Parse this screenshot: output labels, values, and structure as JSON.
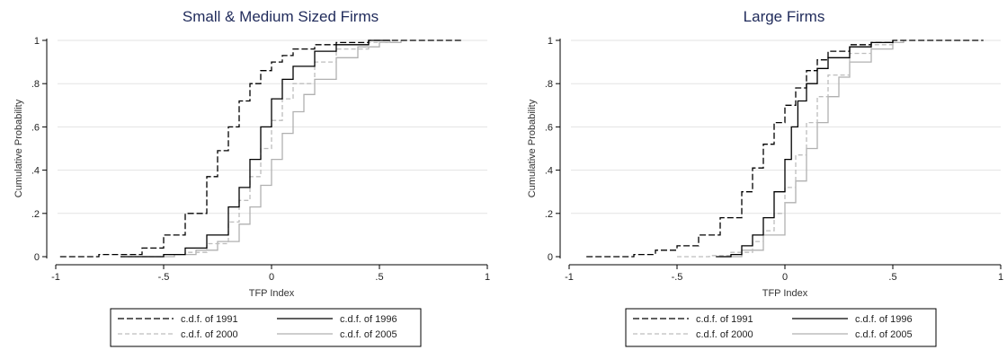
{
  "chart_data": [
    {
      "type": "line",
      "title": "Small & Medium Sized Firms",
      "xlabel": "TFP Index",
      "ylabel": "Cumulative Probability",
      "xlim": [
        -1,
        1
      ],
      "ylim": [
        0,
        1
      ],
      "xticks": [
        -1,
        -0.5,
        0,
        0.5,
        1
      ],
      "xtick_labels": [
        "-1",
        "-.5",
        "0",
        ".5",
        "1"
      ],
      "yticks": [
        0,
        0.2,
        0.4,
        0.6,
        0.8,
        1
      ],
      "ytick_labels": [
        "0",
        ".2",
        ".4",
        ".6",
        ".8",
        "1"
      ],
      "grid": true,
      "legend_position": "bottom",
      "series": [
        {
          "name": "c.d.f. of 1991",
          "color": "#000000",
          "dash": "long-dash",
          "x": [
            -0.98,
            -0.8,
            -0.6,
            -0.5,
            -0.4,
            -0.3,
            -0.25,
            -0.2,
            -0.15,
            -0.1,
            -0.05,
            0.0,
            0.05,
            0.1,
            0.2,
            0.3,
            0.45,
            0.6,
            0.7,
            0.88
          ],
          "y": [
            0,
            0.01,
            0.04,
            0.1,
            0.2,
            0.37,
            0.49,
            0.6,
            0.72,
            0.8,
            0.86,
            0.9,
            0.93,
            0.96,
            0.98,
            0.99,
            1,
            1,
            1,
            1
          ]
        },
        {
          "name": "c.d.f. of 1996",
          "color": "#000000",
          "dash": "solid",
          "x": [
            -0.7,
            -0.5,
            -0.4,
            -0.3,
            -0.2,
            -0.15,
            -0.1,
            -0.05,
            0.0,
            0.05,
            0.1,
            0.2,
            0.3,
            0.45,
            0.55
          ],
          "y": [
            0,
            0.01,
            0.04,
            0.1,
            0.23,
            0.32,
            0.45,
            0.6,
            0.73,
            0.82,
            0.88,
            0.95,
            0.98,
            1,
            1
          ]
        },
        {
          "name": "c.d.f. of 2000",
          "color": "#bdbdbd",
          "dash": "dash",
          "x": [
            -0.7,
            -0.5,
            -0.4,
            -0.3,
            -0.2,
            -0.15,
            -0.1,
            -0.05,
            0.0,
            0.05,
            0.1,
            0.2,
            0.3,
            0.45,
            0.55
          ],
          "y": [
            0,
            0.01,
            0.02,
            0.06,
            0.16,
            0.26,
            0.37,
            0.5,
            0.63,
            0.73,
            0.8,
            0.9,
            0.96,
            0.99,
            1
          ]
        },
        {
          "name": "c.d.f. of 2005",
          "color": "#b0b0b0",
          "dash": "solid",
          "x": [
            -0.6,
            -0.45,
            -0.35,
            -0.25,
            -0.15,
            -0.1,
            -0.05,
            0.0,
            0.05,
            0.1,
            0.15,
            0.2,
            0.3,
            0.4,
            0.5,
            0.6
          ],
          "y": [
            0,
            0.01,
            0.03,
            0.07,
            0.15,
            0.23,
            0.33,
            0.45,
            0.57,
            0.67,
            0.75,
            0.82,
            0.92,
            0.97,
            0.99,
            1
          ]
        }
      ]
    },
    {
      "type": "line",
      "title": "Large Firms",
      "xlabel": "TFP Index",
      "ylabel": "Cumulative Probability",
      "xlim": [
        -1,
        1
      ],
      "ylim": [
        0,
        1
      ],
      "xticks": [
        -1,
        -0.5,
        0,
        0.5,
        1
      ],
      "xtick_labels": [
        "-1",
        "-.5",
        "0",
        ".5",
        "1"
      ],
      "yticks": [
        0,
        0.2,
        0.4,
        0.6,
        0.8,
        1
      ],
      "ytick_labels": [
        "0",
        ".2",
        ".4",
        ".6",
        ".8",
        "1"
      ],
      "grid": true,
      "legend_position": "bottom",
      "series": [
        {
          "name": "c.d.f. of 1991",
          "color": "#000000",
          "dash": "long-dash",
          "x": [
            -0.92,
            -0.7,
            -0.6,
            -0.5,
            -0.4,
            -0.3,
            -0.2,
            -0.15,
            -0.1,
            -0.05,
            0.0,
            0.05,
            0.1,
            0.15,
            0.2,
            0.3,
            0.4,
            0.5,
            0.7,
            0.92
          ],
          "y": [
            0,
            0.01,
            0.03,
            0.05,
            0.1,
            0.18,
            0.3,
            0.41,
            0.52,
            0.62,
            0.7,
            0.78,
            0.86,
            0.91,
            0.95,
            0.98,
            0.99,
            1,
            1,
            1
          ]
        },
        {
          "name": "c.d.f. of 1996",
          "color": "#000000",
          "dash": "solid",
          "x": [
            -0.32,
            -0.25,
            -0.2,
            -0.15,
            -0.1,
            -0.05,
            0.0,
            0.03,
            0.06,
            0.1,
            0.15,
            0.2,
            0.3,
            0.4,
            0.5
          ],
          "y": [
            0,
            0.01,
            0.05,
            0.1,
            0.18,
            0.3,
            0.45,
            0.6,
            0.72,
            0.8,
            0.87,
            0.92,
            0.97,
            0.99,
            1
          ]
        },
        {
          "name": "c.d.f. of 2000",
          "color": "#bdbdbd",
          "dash": "dash",
          "x": [
            -0.5,
            -0.35,
            -0.25,
            -0.15,
            -0.1,
            -0.05,
            0.0,
            0.05,
            0.1,
            0.15,
            0.2,
            0.3,
            0.4,
            0.5
          ],
          "y": [
            0,
            0.005,
            0.02,
            0.07,
            0.12,
            0.2,
            0.32,
            0.47,
            0.62,
            0.74,
            0.84,
            0.94,
            0.98,
            1
          ]
        },
        {
          "name": "c.d.f. of 2005",
          "color": "#b0b0b0",
          "dash": "solid",
          "x": [
            -0.3,
            -0.2,
            -0.1,
            0.0,
            0.05,
            0.1,
            0.15,
            0.2,
            0.25,
            0.3,
            0.4,
            0.5,
            0.55
          ],
          "y": [
            0,
            0.03,
            0.1,
            0.25,
            0.35,
            0.5,
            0.62,
            0.74,
            0.83,
            0.9,
            0.96,
            0.99,
            1
          ]
        }
      ]
    }
  ]
}
